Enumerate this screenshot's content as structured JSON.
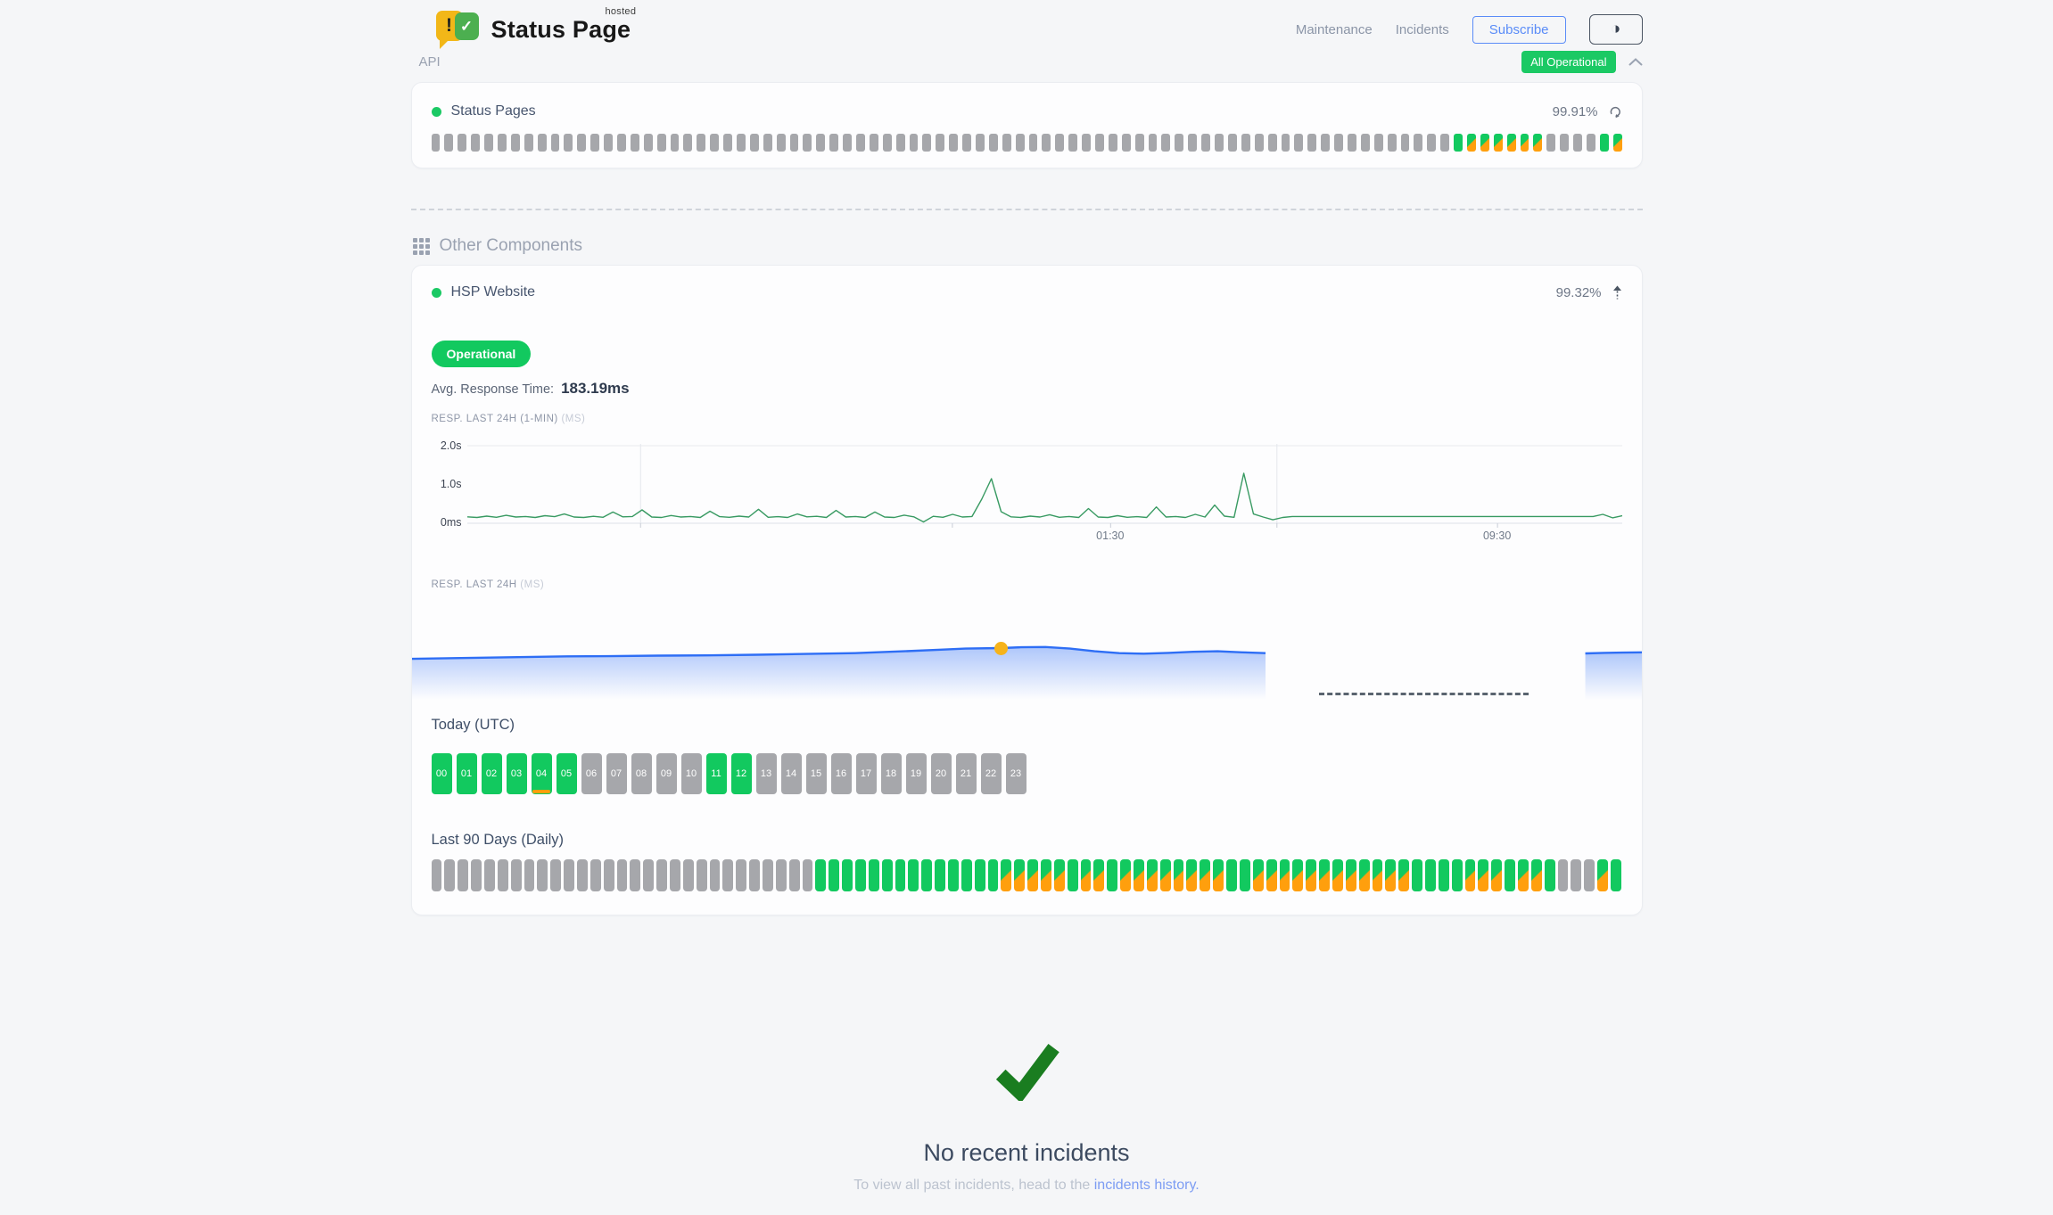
{
  "header": {
    "brand": {
      "name": "Status Page",
      "superscript": "hosted",
      "exclaim": "!",
      "check": "✓"
    },
    "nav_links": [
      {
        "label": "Maintenance"
      },
      {
        "label": "Incidents"
      }
    ],
    "subscribe_label": "Subscribe",
    "theme_icon_glyph": "◑"
  },
  "overall_status": {
    "label": "All Operational"
  },
  "sections": {
    "api": {
      "title": "API",
      "component": {
        "name": "Status Pages",
        "uptime_pct": "99.91%",
        "uptime_bars_rle": [
          [
            "none",
            77
          ],
          [
            "up",
            1
          ],
          [
            "partial",
            6
          ],
          [
            "none",
            4
          ],
          [
            "up",
            1
          ],
          [
            "partial",
            1
          ]
        ]
      }
    },
    "other": {
      "title": "Other Components",
      "component": {
        "name": "HSP Website",
        "uptime_pct": "99.32%",
        "status_badge": "Operational",
        "avg_response_label": "Avg. Response Time:",
        "avg_response_value": "183.19ms",
        "resp_1min_label": "RESP. LAST 24H (1-MIN)",
        "resp_1min_unit": "(MS)",
        "resp_24h_label": "RESP. LAST 24H",
        "resp_24h_unit": "(MS)",
        "today_heading": "Today (UTC)",
        "today_hours": [
          {
            "label": "00",
            "status": "up"
          },
          {
            "label": "01",
            "status": "up"
          },
          {
            "label": "02",
            "status": "up"
          },
          {
            "label": "03",
            "status": "up"
          },
          {
            "label": "04",
            "status": "up",
            "incident": true
          },
          {
            "label": "05",
            "status": "up"
          },
          {
            "label": "06",
            "status": "none"
          },
          {
            "label": "07",
            "status": "none"
          },
          {
            "label": "08",
            "status": "none"
          },
          {
            "label": "09",
            "status": "none"
          },
          {
            "label": "10",
            "status": "none"
          },
          {
            "label": "11",
            "status": "up"
          },
          {
            "label": "12",
            "status": "up"
          },
          {
            "label": "13",
            "status": "none"
          },
          {
            "label": "14",
            "status": "none"
          },
          {
            "label": "15",
            "status": "none"
          },
          {
            "label": "16",
            "status": "none"
          },
          {
            "label": "17",
            "status": "none"
          },
          {
            "label": "18",
            "status": "none"
          },
          {
            "label": "19",
            "status": "none"
          },
          {
            "label": "20",
            "status": "none"
          },
          {
            "label": "21",
            "status": "none"
          },
          {
            "label": "22",
            "status": "none"
          },
          {
            "label": "23",
            "status": "none"
          }
        ],
        "last90_heading": "Last 90 Days (Daily)",
        "last90_days_rle": [
          [
            "none",
            29
          ],
          [
            "up",
            14
          ],
          [
            "partial",
            5
          ],
          [
            "up",
            1
          ],
          [
            "partial",
            2
          ],
          [
            "up",
            1
          ],
          [
            "partial",
            8
          ],
          [
            "up",
            2
          ],
          [
            "partial",
            12
          ],
          [
            "up",
            4
          ],
          [
            "partial",
            3
          ],
          [
            "up",
            1
          ],
          [
            "partial",
            2
          ],
          [
            "up",
            1
          ],
          [
            "none",
            3
          ],
          [
            "partial",
            1
          ],
          [
            "up",
            1
          ]
        ]
      }
    }
  },
  "incidents": {
    "title": "No recent incidents",
    "caption_prefix": "To view all past incidents, head to the ",
    "link_text": "incidents history."
  },
  "colors": {
    "green": "#12c95f",
    "orange": "#ff9f0d",
    "gray": "#a6a7ab",
    "badge_green": "#1bc964",
    "chart_green": "#389a62",
    "chart_blue": "#2e6ef5",
    "marker_yellow": "#f6b31b",
    "link_blue": "#7d9df3",
    "check_green": "#1a7d20"
  },
  "chart_data": [
    {
      "type": "line",
      "title": "RESP. LAST 24H (1-MIN)",
      "unit": "MS",
      "ylabel_ticks": [
        "2.0s",
        "1.0s",
        "0ms"
      ],
      "ylim": [
        0,
        2000
      ],
      "grid": true,
      "line_color": "#389a62",
      "x_tick_labels": [
        {
          "label": "01:30",
          "pct": 55.7
        },
        {
          "label": "09:30",
          "pct": 89.2
        }
      ],
      "gridlines_x_pct": [
        15,
        70.1
      ],
      "axis_ticks_pct": [
        15,
        42,
        55.7,
        70.1,
        89.2
      ],
      "values_ms": [
        165,
        150,
        185,
        155,
        205,
        160,
        175,
        150,
        195,
        170,
        240,
        160,
        150,
        180,
        155,
        290,
        165,
        175,
        345,
        160,
        150,
        200,
        160,
        175,
        150,
        310,
        170,
        155,
        185,
        160,
        360,
        155,
        170,
        150,
        240,
        165,
        180,
        150,
        330,
        160,
        175,
        150,
        290,
        160,
        150,
        210,
        165,
        35,
        180,
        155,
        230,
        160,
        175,
        620,
        1150,
        300,
        165,
        150,
        185,
        160,
        220,
        155,
        175,
        150,
        380,
        160,
        150,
        195,
        155,
        170,
        150,
        420,
        160,
        175,
        150,
        230,
        160,
        470,
        185,
        155,
        1290,
        240,
        160,
        90,
        150,
        175,
        175,
        175,
        175,
        175,
        175,
        175,
        175,
        175,
        175,
        175,
        175,
        175,
        175,
        175,
        175,
        175,
        175,
        175,
        175,
        175,
        175,
        175,
        175,
        175,
        175,
        175,
        175,
        175,
        175,
        175,
        175,
        230,
        140,
        195
      ]
    },
    {
      "type": "area",
      "title": "RESP. LAST 24H",
      "unit": "MS",
      "ylim": [
        0,
        330
      ],
      "line_color": "#2e6ef5",
      "fill_color": "#2e6ef5",
      "marker": {
        "pct": 47.9,
        "value": 208,
        "color": "#f6b31b"
      },
      "no_data_dash": {
        "from_pct": 73.8,
        "to_pct": 90.8
      },
      "segments": [
        [
          [
            0,
            168
          ],
          [
            4,
            171
          ],
          [
            8,
            174
          ],
          [
            12,
            177
          ],
          [
            16,
            178
          ],
          [
            20,
            180
          ],
          [
            24,
            181
          ],
          [
            28,
            183
          ],
          [
            32,
            186
          ],
          [
            36,
            189
          ],
          [
            40,
            196
          ],
          [
            43,
            202
          ],
          [
            45,
            206
          ],
          [
            47.9,
            208
          ],
          [
            49.5,
            211
          ],
          [
            51.5,
            212
          ],
          [
            53.5,
            206
          ],
          [
            55.5,
            196
          ],
          [
            57.5,
            189
          ],
          [
            59.5,
            187
          ],
          [
            61.5,
            190
          ],
          [
            63.5,
            194
          ],
          [
            65.5,
            196
          ],
          [
            67.5,
            192
          ],
          [
            69.4,
            189
          ]
        ],
        [
          [
            95.4,
            188
          ],
          [
            96.9,
            190
          ],
          [
            98.4,
            191
          ],
          [
            100,
            192
          ]
        ]
      ]
    }
  ]
}
